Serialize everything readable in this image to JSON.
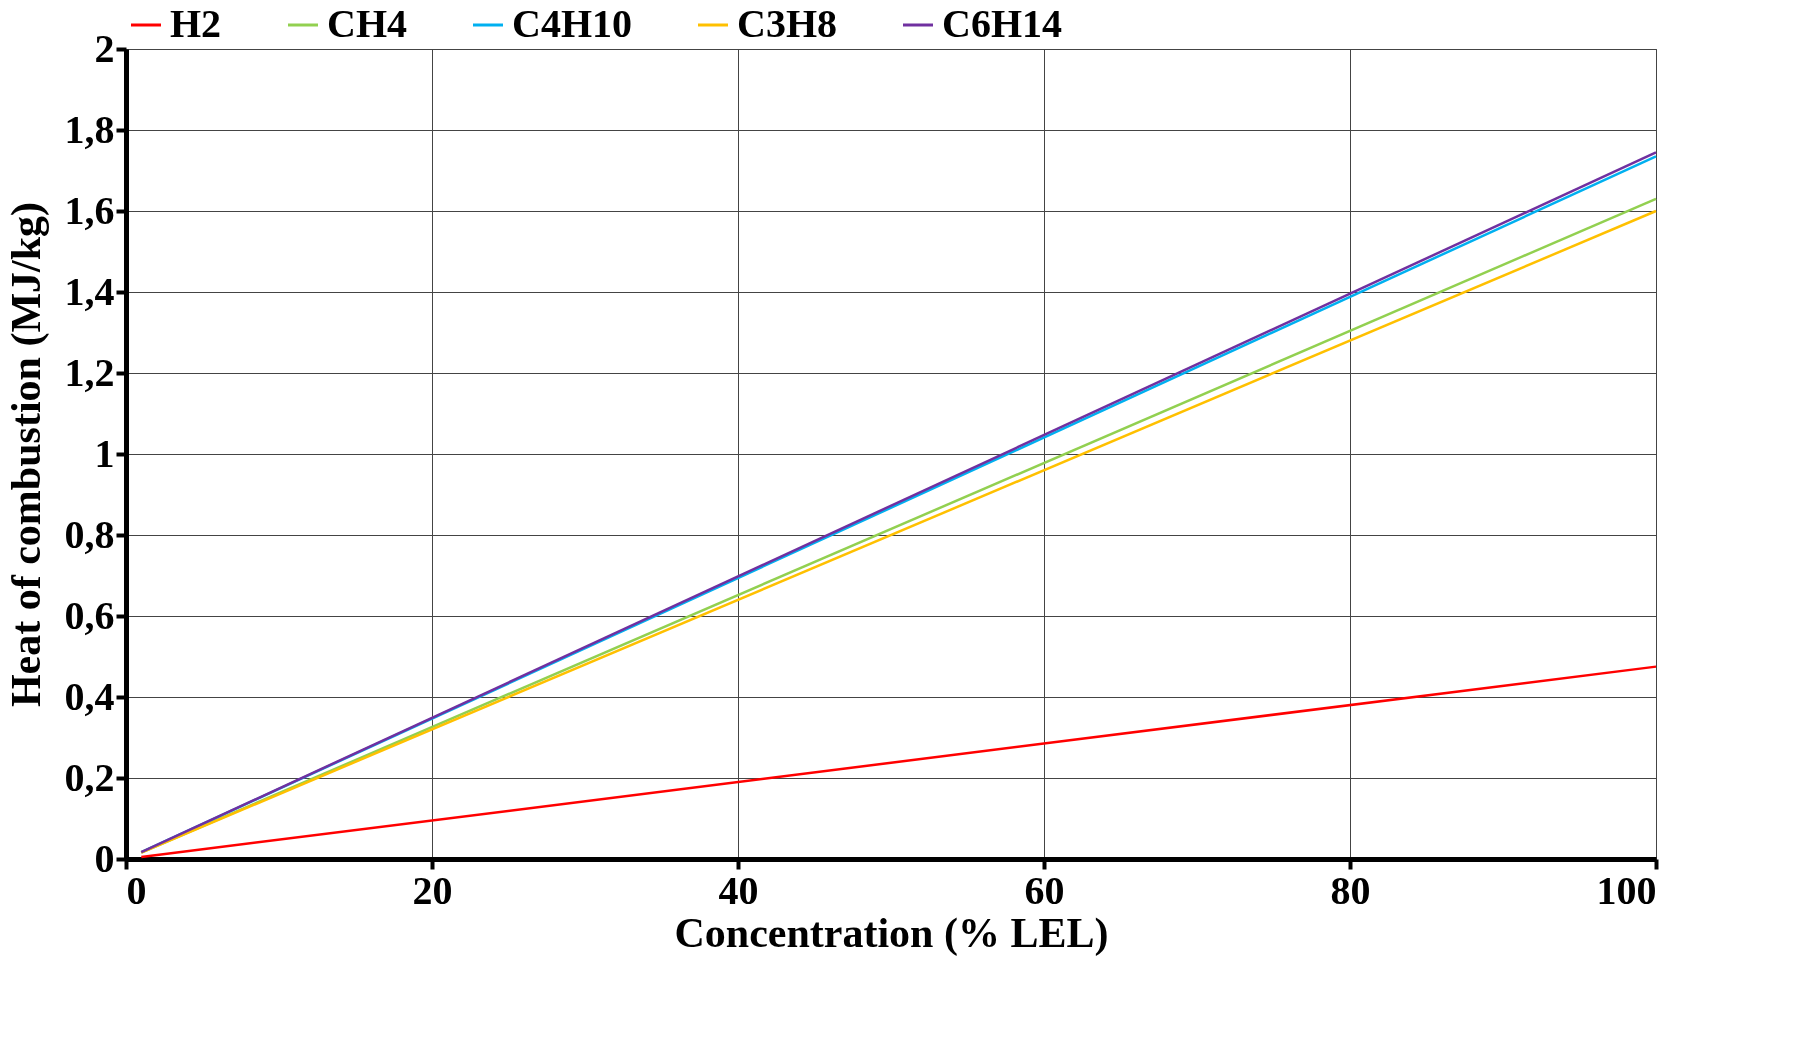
{
  "chart_data": {
    "type": "line",
    "xlabel": "Concentration (% LEL)",
    "ylabel": "Heat of combustion (MJ/kg)",
    "xlim": [
      0,
      100
    ],
    "xticks": [
      0,
      20,
      40,
      60,
      80,
      100
    ],
    "ylim": [
      0,
      2
    ],
    "yticks": [
      0,
      {
        "value": 0.2,
        "label": "0,2"
      },
      {
        "value": 0.4,
        "label": "0,4"
      },
      {
        "value": 0.6,
        "label": "0,6"
      },
      {
        "value": 0.8,
        "label": "0,8"
      },
      1,
      {
        "value": 1.2,
        "label": "1,2"
      },
      {
        "value": 1.4,
        "label": "1,4"
      },
      {
        "value": 1.6,
        "label": "1,6"
      },
      {
        "value": 1.8,
        "label": "1,8"
      },
      2
    ],
    "grid": true,
    "legend": "top",
    "marker": "none",
    "line_style": "solid",
    "x": [
      1,
      100
    ],
    "series": [
      {
        "name": "H2",
        "color": "#ff0000",
        "values": [
          0.005,
          0.475
        ]
      },
      {
        "name": "CH4",
        "color": "#92d050",
        "values": [
          0.016,
          1.63
        ]
      },
      {
        "name": "C4H10",
        "color": "#00b0f0",
        "values": [
          0.017,
          1.735
        ]
      },
      {
        "name": "C3H8",
        "color": "#ffc000",
        "values": [
          0.016,
          1.6
        ]
      },
      {
        "name": "C6H14",
        "color": "#7030a0",
        "values": [
          0.017,
          1.745
        ]
      }
    ]
  }
}
